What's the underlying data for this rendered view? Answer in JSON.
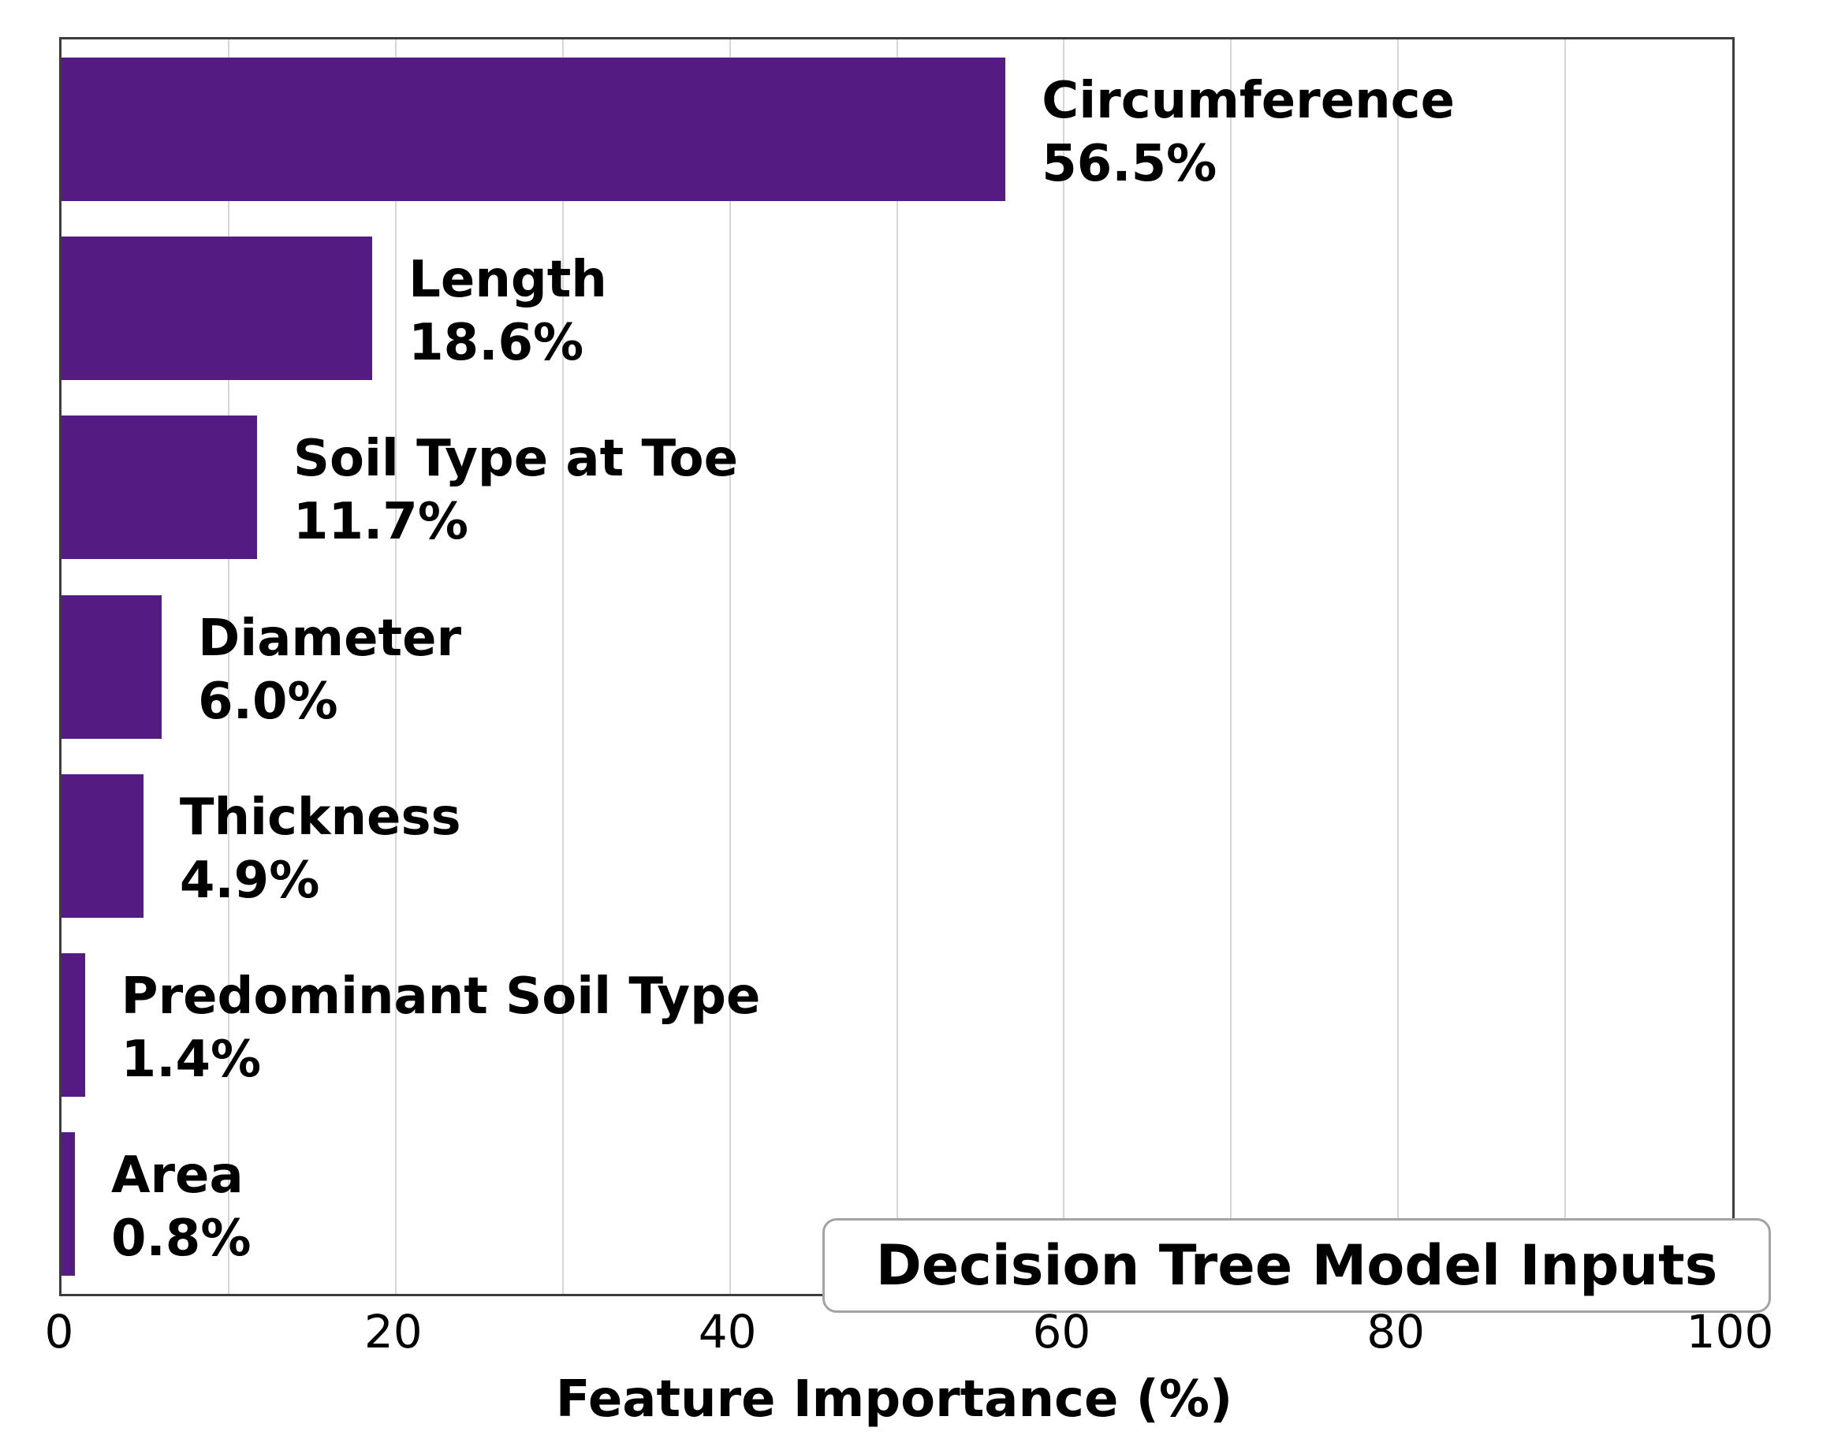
{
  "chart_data": {
    "type": "bar",
    "orientation": "horizontal",
    "title": "",
    "categories": [
      "Circumference",
      "Length",
      "Soil Type at Toe",
      "Diameter",
      "Thickness",
      "Predominant Soil Type",
      "Area"
    ],
    "values": [
      56.5,
      18.6,
      11.7,
      6.0,
      4.9,
      1.4,
      0.8
    ],
    "value_suffix": "%",
    "xlabel": "Feature Importance (%)",
    "ylabel": "",
    "xlim": [
      0,
      100
    ],
    "xticks": [
      0,
      20,
      40,
      60,
      80,
      100
    ],
    "xtick_labels": [
      "0",
      "20",
      "40",
      "60",
      "80",
      "100"
    ],
    "gridline_step": 10,
    "grid": "vertical-only",
    "legend_position": "none",
    "annotation": "Decision Tree Model Inputs",
    "bar_color": "#541b82",
    "grid_color": "#d6d6d6",
    "spine_color": "#3c3c3c",
    "annotation_border_color": "#a3a3a3",
    "text_color": "#000000"
  }
}
